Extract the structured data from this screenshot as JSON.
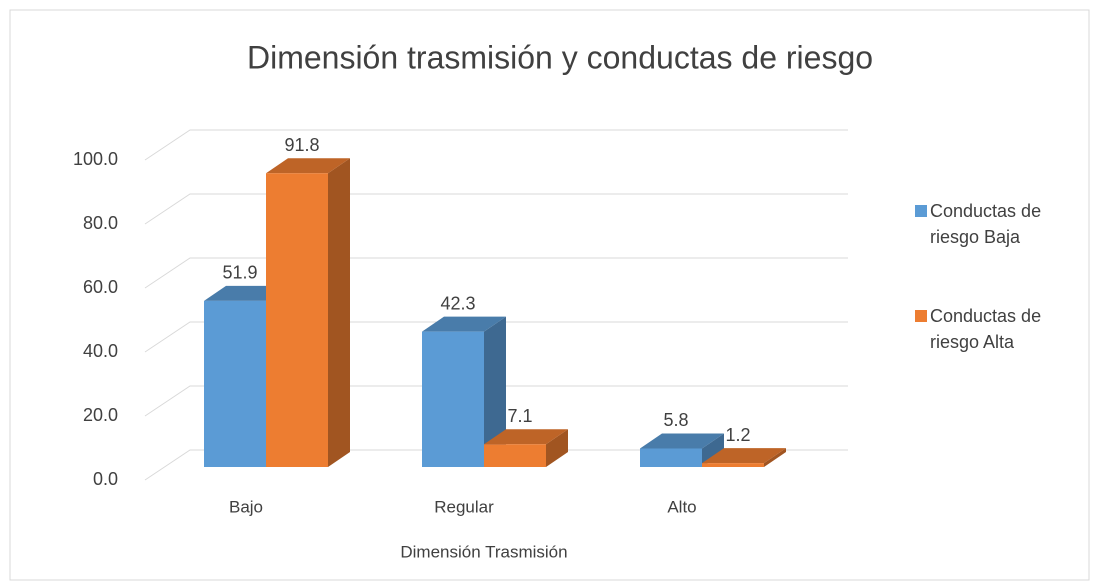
{
  "chart_data": {
    "type": "bar3d",
    "title": "Dimensión trasmisión y conductas de riesgo",
    "x_label": "Dimensión Trasmisión",
    "categories": [
      "Bajo",
      "Regular",
      "Alto"
    ],
    "series": [
      {
        "name": "Conductas de riesgo Baja",
        "color": "#5b9bd5",
        "values": [
          51.9,
          42.3,
          5.8
        ]
      },
      {
        "name": "Conductas de riesgo Alta",
        "color": "#ed7d31",
        "values": [
          91.8,
          7.1,
          1.2
        ]
      }
    ],
    "ylim": [
      0,
      100
    ],
    "yticks": [
      {
        "value": 0,
        "label": "0.0"
      },
      {
        "value": 20,
        "label": "20.0"
      },
      {
        "value": 40,
        "label": "40.0"
      },
      {
        "value": 60,
        "label": "60.0"
      },
      {
        "value": 80,
        "label": "80.0"
      },
      {
        "value": 100,
        "label": "100.0"
      }
    ],
    "grid": true,
    "legend": "right"
  }
}
